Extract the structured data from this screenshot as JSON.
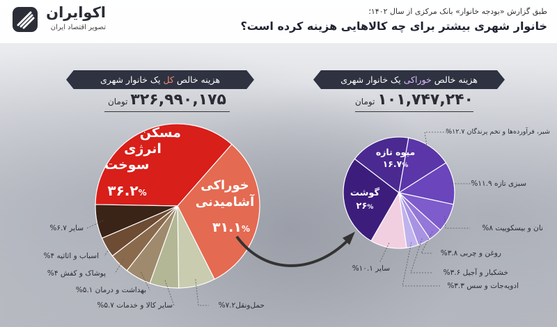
{
  "brand": {
    "name": "اکوایران",
    "tagline": "تصویر اقتصاد ایران"
  },
  "header": {
    "supertitle": "طبق گزارش «بودجه خانوار» بانک مرکزی از سال ۱۴۰۲؛",
    "title": "خانوار شهری بیشتر برای چه کالاهایی هزینه کرده است؟"
  },
  "colors": {
    "banner": "#2f3240",
    "red": "#e0201b",
    "salmon": "#e8705a",
    "purple_dark": "#3b1b78"
  },
  "chart_data": [
    {
      "type": "pie",
      "title_pre": "هزینه خالص ",
      "title_hl": "کل",
      "title_post": " یک خانوار شهری",
      "total_value": "۳۲۶,۹۹۰,۱۷۵",
      "total_unit": "تومان",
      "slices": [
        {
          "label": "مسکن انرژی سوخت",
          "value": 36.2,
          "value_text": "۳۶.۲",
          "color": "#d81f1a",
          "line1": "مسکن",
          "line2": "انرژی",
          "line3": "سوخت"
        },
        {
          "label": "خوراکی آشامیدنی",
          "value": 31.1,
          "value_text": "۳۱.۱",
          "color": "#e46a52",
          "line1": "خوراکی",
          "line2": "آشامیدنی"
        },
        {
          "label": "حمل‌ونقل",
          "value": 7.2,
          "value_text": "۷.۲",
          "color": "#c9ccaf"
        },
        {
          "label": "سایر کالا و خدمات",
          "value": 5.7,
          "value_text": "۵.۷",
          "color": "#b4b795"
        },
        {
          "label": "بهداشت و درمان",
          "value": 5.1,
          "value_text": "۵.۱",
          "color": "#a08a6d"
        },
        {
          "label": "پوشاک و کفش",
          "value": 4,
          "value_text": "۴",
          "color": "#8a6a4c"
        },
        {
          "label": "اسباب و اثاثیه",
          "value": 4,
          "value_text": "۴",
          "color": "#6d4c33"
        },
        {
          "label": "سایر",
          "value": 6.7,
          "value_text": "۶.۷",
          "color": "#3a2417"
        }
      ]
    },
    {
      "type": "pie",
      "title_pre": "هزینه خالص ",
      "title_hl": "خوراکی",
      "title_post": " یک خانوار شهری",
      "total_value": "۱۰۱,۷۴۷,۲۴۰",
      "total_unit": "تومان",
      "slices": [
        {
          "label": "گوشت",
          "value": 26,
          "value_text": "۲۶",
          "color": "#3d1d7c"
        },
        {
          "label": "میوه تازه",
          "value": 16.7,
          "value_text": "۱۶.۷",
          "color": "#4a2a91"
        },
        {
          "label": "شیر، فرآورده‌ها و تخم پرندگان",
          "value": 12.7,
          "value_text": "۱۲.۷",
          "color": "#5a36a8"
        },
        {
          "label": "سبزی تازه",
          "value": 11.9,
          "value_text": "۱۱.۹",
          "color": "#6a45bc"
        },
        {
          "label": "نان و بیسکوییت",
          "value": 8,
          "value_text": "۸",
          "color": "#7e5ccc"
        },
        {
          "label": "روغن و چربی",
          "value": 3.8,
          "value_text": "۳.۸",
          "color": "#9477d9"
        },
        {
          "label": "خشکبار و آجیل",
          "value": 3.6,
          "value_text": "۳.۶",
          "color": "#a893e3"
        },
        {
          "label": "ادویه‌جات و سس",
          "value": 3.3,
          "value_text": "۳.۳",
          "color": "#c0b2ec"
        },
        {
          "label": "سایر",
          "value": 10.1,
          "value_text": "۱۰.۱",
          "color": "#f2cfe0"
        }
      ]
    }
  ]
}
